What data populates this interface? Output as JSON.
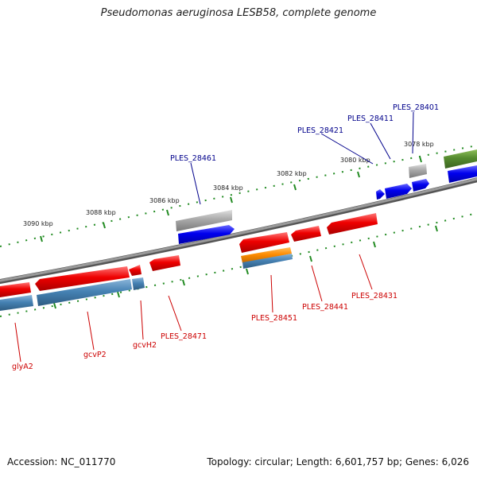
{
  "title": "Pseudomonas aeruginosa LESB58, complete genome",
  "footer": {
    "accession": "Accession: NC_011770",
    "topology": "Topology: circular; Length: 6,601,757 bp; Genes: 6,026"
  },
  "scale_labels": [
    "3090 kbp",
    "3088 kbp",
    "3086 kbp",
    "3084 kbp",
    "3082 kbp",
    "3080 kbp",
    "3078 kbp"
  ],
  "forward_gene_labels": [
    "PLES_28461",
    "PLES_28421",
    "PLES_28411",
    "PLES_28401"
  ],
  "reverse_gene_labels": [
    "glyA2",
    "gcvP2",
    "gcvH2",
    "PLES_28471",
    "PLES_28451",
    "PLES_28441",
    "PLES_28431"
  ],
  "colors": {
    "forward_label": "#00008b",
    "reverse_label": "#cc0000",
    "cds_forward": "#0000ee",
    "cds_reverse": "#ee0000",
    "pseudogene": "#a8a8a8",
    "rna": "#558b2f",
    "blue_feature": "#4682b4",
    "orange_feature": "#ff8c00",
    "backbone": "#808080",
    "tick": "#228b22"
  }
}
